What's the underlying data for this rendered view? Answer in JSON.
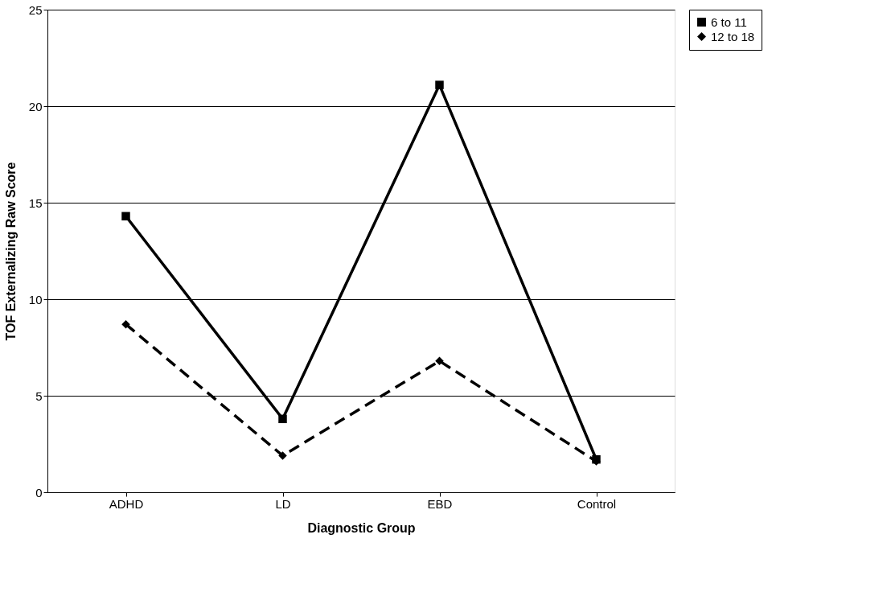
{
  "chart_data": {
    "type": "line",
    "xlabel": "Diagnostic Group",
    "ylabel": "TOF Externalizing Raw Score",
    "categories": [
      "ADHD",
      "LD",
      "EBD",
      "Control"
    ],
    "series": [
      {
        "name": "6 to 11",
        "color": "#000000",
        "values": [
          14.3,
          3.8,
          21.1,
          1.7
        ],
        "marker": "square",
        "line_style": "solid"
      },
      {
        "name": "12 to 18",
        "color": "#000000",
        "values": [
          8.7,
          1.9,
          6.8,
          1.6
        ],
        "marker": "diamond",
        "line_style": "dashed"
      }
    ],
    "ylim": [
      0,
      25
    ],
    "yticks": [
      0,
      5,
      10,
      15,
      20,
      25
    ],
    "grid": "y",
    "legend": "right"
  }
}
